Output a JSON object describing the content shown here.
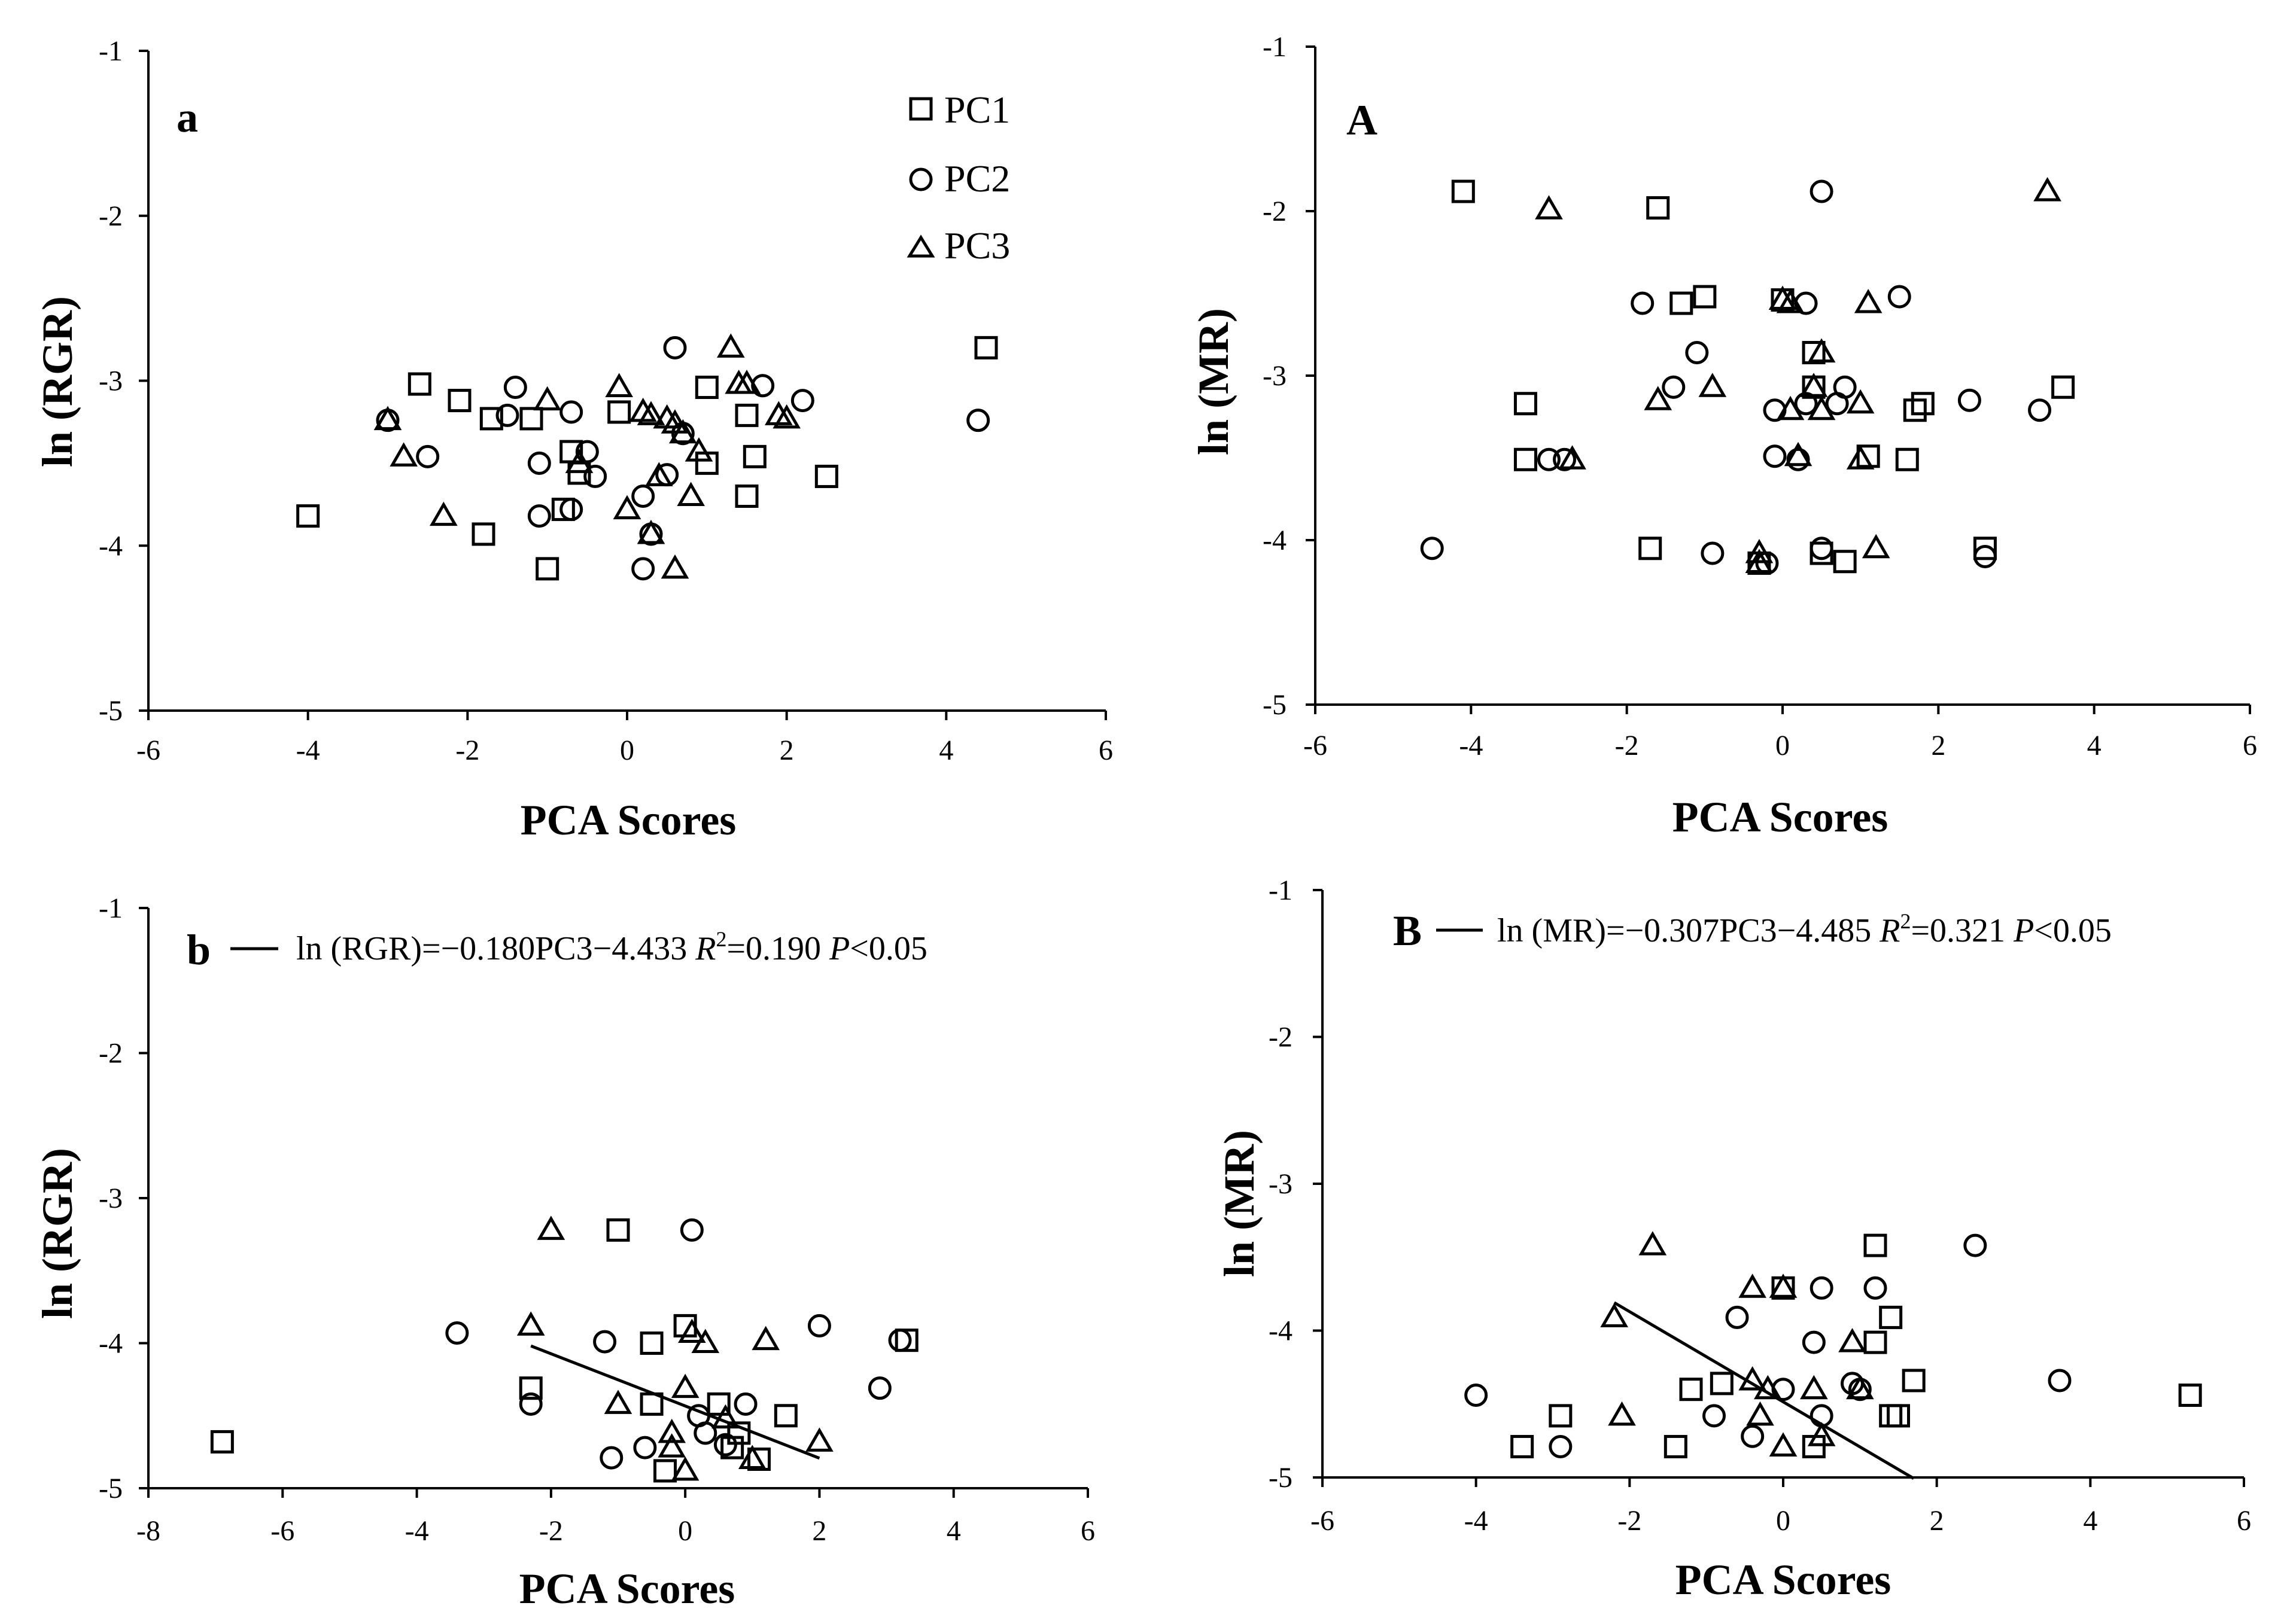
{
  "colors": {
    "axis": "#000000",
    "marker": "#000000",
    "background": "#ffffff"
  },
  "chart_data": [
    {
      "type": "scatter",
      "panel_label": "a",
      "xlabel": "PCA Scores",
      "ylabel": "ln (RGR)",
      "xlim": [
        -6,
        6
      ],
      "ylim": [
        -5,
        -1
      ],
      "xticks": [
        "-6",
        "-4",
        "-2",
        "0",
        "2",
        "4",
        "6"
      ],
      "yticks": [
        "-1",
        "-2",
        "-3",
        "-4",
        "-5"
      ],
      "legend": {
        "position": "top-right",
        "entries": [
          "PC1",
          "PC2",
          "PC3"
        ]
      },
      "series": [
        {
          "name": "PC1",
          "marker": "square",
          "x": [
            -4.0,
            -2.6,
            -2.1,
            -1.8,
            -1.7,
            -1.2,
            -1.0,
            -0.8,
            -0.7,
            -0.6,
            -0.1,
            1.0,
            1.0,
            1.5,
            1.5,
            1.6,
            2.5,
            4.5
          ],
          "y": [
            -3.82,
            -3.02,
            -3.12,
            -3.93,
            -3.23,
            -3.23,
            -4.14,
            -3.78,
            -3.43,
            -3.56,
            -3.19,
            -3.04,
            -3.5,
            -3.7,
            -3.21,
            -3.46,
            -3.58,
            -2.8
          ]
        },
        {
          "name": "PC2",
          "marker": "circle",
          "x": [
            -3.0,
            -2.5,
            -1.5,
            -1.4,
            -1.1,
            -1.1,
            -0.7,
            -0.7,
            -0.5,
            -0.4,
            0.2,
            0.2,
            0.3,
            0.5,
            0.6,
            0.7,
            1.7,
            2.2,
            4.4
          ],
          "y": [
            -3.24,
            -3.46,
            -3.21,
            -3.04,
            -3.5,
            -3.82,
            -3.19,
            -3.78,
            -3.43,
            -3.58,
            -3.7,
            -4.14,
            -3.93,
            -3.57,
            -2.8,
            -3.32,
            -3.03,
            -3.12,
            -3.24
          ]
        },
        {
          "name": "PC3",
          "marker": "triangle",
          "x": [
            -3.0,
            -2.8,
            -2.3,
            -1.0,
            -0.6,
            -0.1,
            0.0,
            0.2,
            0.3,
            0.3,
            0.4,
            0.5,
            0.6,
            0.6,
            0.7,
            0.8,
            0.9,
            1.3,
            1.4,
            1.5,
            1.9,
            2.0
          ],
          "y": [
            -3.24,
            -3.46,
            -3.82,
            -3.12,
            -3.5,
            -3.04,
            -3.78,
            -3.19,
            -3.21,
            -3.93,
            -3.58,
            -3.23,
            -4.14,
            -3.26,
            -3.32,
            -3.7,
            -3.43,
            -2.8,
            -3.02,
            -3.02,
            -3.21,
            -3.23
          ]
        }
      ]
    },
    {
      "type": "scatter",
      "panel_label": "A",
      "xlabel": "PCA Scores",
      "ylabel": "ln (MR)",
      "xlim": [
        -6,
        6
      ],
      "ylim": [
        -5,
        -1
      ],
      "xticks": [
        "-6",
        "-4",
        "-2",
        "0",
        "2",
        "4",
        "6"
      ],
      "yticks": [
        "-1",
        "-2",
        "-3",
        "-4",
        "-5"
      ],
      "series": [
        {
          "name": "PC1",
          "marker": "square",
          "x": [
            -4.1,
            -3.3,
            -3.3,
            -1.6,
            -1.7,
            -1.3,
            -1.0,
            -0.3,
            0.0,
            0.4,
            0.4,
            0.5,
            0.8,
            1.1,
            1.6,
            1.7,
            1.8,
            2.6,
            3.6
          ],
          "y": [
            -1.88,
            -3.17,
            -3.51,
            -1.98,
            -4.05,
            -2.56,
            -2.52,
            -4.14,
            -2.54,
            -2.86,
            -3.07,
            -4.08,
            -4.13,
            -3.49,
            -3.51,
            -3.21,
            -3.17,
            -4.05,
            -3.07
          ]
        },
        {
          "name": "PC2",
          "marker": "circle",
          "x": [
            -4.5,
            -3.0,
            -2.8,
            -1.8,
            -1.4,
            -1.1,
            -0.9,
            -0.2,
            -0.1,
            -0.1,
            0.2,
            0.3,
            0.3,
            0.5,
            0.5,
            0.7,
            0.8,
            1.5,
            2.4,
            2.6,
            3.3
          ],
          "y": [
            -4.05,
            -3.51,
            -3.51,
            -2.56,
            -3.07,
            -2.86,
            -4.08,
            -4.14,
            -3.21,
            -3.49,
            -3.51,
            -2.56,
            -3.17,
            -1.88,
            -4.05,
            -3.17,
            -3.07,
            -2.52,
            -3.15,
            -4.1,
            -3.21
          ]
        },
        {
          "name": "PC3",
          "marker": "triangle",
          "x": [
            -3.0,
            -2.7,
            -1.6,
            -0.9,
            -0.3,
            -0.3,
            0.0,
            0.1,
            0.1,
            0.2,
            0.4,
            0.5,
            0.5,
            1.0,
            1.0,
            1.1,
            1.2,
            3.4
          ],
          "y": [
            -1.99,
            -3.51,
            -3.15,
            -3.07,
            -4.08,
            -4.14,
            -2.54,
            -2.56,
            -3.21,
            -3.49,
            -3.07,
            -2.86,
            -3.21,
            -3.51,
            -3.17,
            -2.56,
            -4.05,
            -1.88
          ]
        }
      ]
    },
    {
      "type": "scatter",
      "panel_label": "b",
      "xlabel": "PCA Scores",
      "ylabel": "ln (RGR)",
      "xlim": [
        -8,
        6
      ],
      "ylim": [
        -5,
        -1
      ],
      "xticks": [
        "-8",
        "-6",
        "-4",
        "-2",
        "0",
        "2",
        "4",
        "6"
      ],
      "yticks": [
        "-1",
        "-2",
        "-3",
        "-4",
        "-5"
      ],
      "equation": {
        "lhs": "ln (RGR)=−0.180PC3−4.433 ",
        "r_sym": "R",
        "r_sup": "2",
        "r_val": "=0.190 ",
        "p_sym": "P",
        "p_val": "<0.05"
      },
      "regression": {
        "slope": -0.18,
        "intercept": -4.433,
        "x_range": [
          -2.3,
          2.0
        ]
      },
      "series": [
        {
          "name": "PC1",
          "marker": "square",
          "x": [
            -6.9,
            -2.3,
            -1.0,
            -0.5,
            -0.5,
            -0.3,
            0.0,
            0.5,
            0.7,
            0.8,
            1.1,
            1.5,
            3.3
          ],
          "y": [
            -4.68,
            -4.31,
            -3.22,
            -4.0,
            -4.42,
            -4.88,
            -3.88,
            -4.42,
            -4.72,
            -4.62,
            -4.8,
            -4.5,
            -3.98
          ]
        },
        {
          "name": "PC2",
          "marker": "circle",
          "x": [
            -3.4,
            -2.3,
            -1.2,
            -1.1,
            -0.6,
            0.1,
            0.2,
            0.3,
            0.6,
            0.9,
            2.0,
            2.9,
            3.2
          ],
          "y": [
            -3.93,
            -4.42,
            -3.99,
            -4.79,
            -4.72,
            -3.22,
            -4.5,
            -4.62,
            -4.7,
            -4.42,
            -3.88,
            -4.31,
            -3.98
          ]
        },
        {
          "name": "PC3",
          "marker": "triangle",
          "x": [
            -2.0,
            -2.3,
            -1.0,
            -0.2,
            -0.2,
            0.0,
            0.0,
            0.1,
            0.3,
            0.6,
            1.0,
            1.2,
            2.0
          ],
          "y": [
            -3.22,
            -3.88,
            -4.42,
            -4.62,
            -4.72,
            -4.31,
            -4.88,
            -3.93,
            -4.0,
            -4.52,
            -4.8,
            -3.98,
            -4.68
          ]
        }
      ]
    },
    {
      "type": "scatter",
      "panel_label": "B",
      "xlabel": "PCA Scores",
      "ylabel": "ln (MR)",
      "xlim": [
        -6,
        6
      ],
      "ylim": [
        -5,
        -1
      ],
      "xticks": [
        "-6",
        "-4",
        "-2",
        "0",
        "2",
        "4",
        "6"
      ],
      "yticks": [
        "-1",
        "-2",
        "-3",
        "-4",
        "-5"
      ],
      "equation": {
        "lhs": "ln (MR)=−0.307PC3−4.485 ",
        "r_sym": "R",
        "r_sup": "2",
        "r_val": "=0.321 ",
        "p_sym": "P",
        "p_val": "<0.05"
      },
      "regression": {
        "slope": -0.307,
        "intercept": -4.485,
        "x_range": [
          -2.2,
          1.7
        ]
      },
      "series": [
        {
          "name": "PC1",
          "marker": "square",
          "x": [
            -3.4,
            -2.9,
            -1.4,
            -1.2,
            -0.8,
            0.0,
            0.4,
            1.2,
            1.2,
            1.4,
            1.4,
            1.5,
            1.7,
            5.3
          ],
          "y": [
            -4.79,
            -4.58,
            -4.79,
            -4.4,
            -4.36,
            -3.71,
            -4.79,
            -3.42,
            -4.08,
            -4.58,
            -3.91,
            -4.58,
            -4.34,
            -4.44
          ]
        },
        {
          "name": "PC2",
          "marker": "circle",
          "x": [
            -4.0,
            -2.9,
            -0.9,
            -0.6,
            -0.4,
            0.0,
            0.4,
            0.5,
            0.5,
            0.9,
            1.0,
            1.2,
            2.5,
            3.6
          ],
          "y": [
            -4.44,
            -4.79,
            -4.58,
            -3.91,
            -4.72,
            -4.4,
            -4.08,
            -3.71,
            -4.58,
            -4.36,
            -4.4,
            -3.71,
            -3.42,
            -4.34
          ]
        },
        {
          "name": "PC3",
          "marker": "triangle",
          "x": [
            -2.2,
            -2.1,
            -1.7,
            -0.4,
            -0.4,
            -0.3,
            -0.2,
            0.0,
            0.0,
            0.4,
            0.5,
            0.9,
            1.0
          ],
          "y": [
            -3.91,
            -4.58,
            -3.42,
            -3.71,
            -4.34,
            -4.58,
            -4.4,
            -4.79,
            -3.71,
            -4.4,
            -4.72,
            -4.08,
            -4.4
          ]
        }
      ]
    }
  ]
}
